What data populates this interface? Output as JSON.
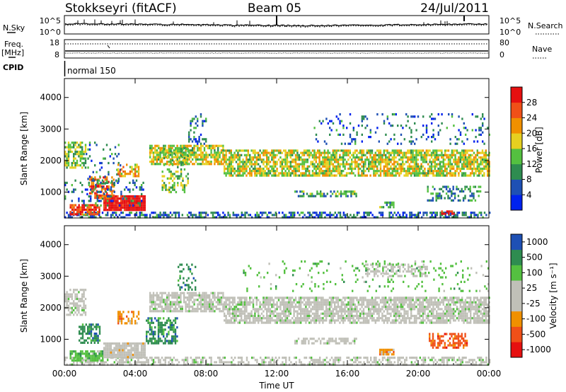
{
  "header": {
    "station": "Stokkseyri (fitACF)",
    "beam": "Beam 05",
    "date": "24/Jul/2011"
  },
  "panels": {
    "noise": {
      "label_left": "N.Sky",
      "label_right": "N.Search",
      "tick_top": "10^5",
      "tick_bottom": "10^0"
    },
    "freq": {
      "label_left_top": "Freq.",
      "label_left_bottom": "[MHz]",
      "tick_top_left": "18",
      "tick_bottom_left": "8",
      "label_right": "Nave",
      "tick_top_right": "80",
      "tick_bottom_right": "0"
    },
    "cpid": {
      "label": "CPID",
      "mode": "normal 150"
    }
  },
  "colors": {
    "power": [
      "#0022ee",
      "#1e50b4",
      "#2e8c50",
      "#54c040",
      "#e6d020",
      "#f09000",
      "#f05018",
      "#e61010"
    ],
    "velocity": [
      "#e61010",
      "#f05018",
      "#f09000",
      "#c0c0b8",
      "#c0c0b8",
      "#54c040",
      "#2e8c50",
      "#1e50b4"
    ],
    "power_colorbar": [
      "#0022ee",
      "#1e50b4",
      "#2e8c50",
      "#54c040",
      "#e6d020",
      "#f09000",
      "#f05018",
      "#e61010"
    ],
    "velocity_colorbar": [
      "#e61010",
      "#f05018",
      "#f09000",
      "#c0c0b8",
      "#c0c0b8",
      "#54c040",
      "#2e8c50",
      "#1e50b4"
    ]
  },
  "chart_data": [
    {
      "type": "heatmap",
      "name": "power",
      "ylabel": "Slant Range [km]",
      "ylim": [
        180,
        4600
      ],
      "yticks": [
        "1000",
        "2000",
        "3000",
        "4000"
      ],
      "colorbar_label": "Power [dB]",
      "colorbar_ticks": [
        "4",
        "8",
        "12",
        "16",
        "20",
        "24",
        "28"
      ],
      "colorbar_range": [
        0,
        32
      ],
      "regions": [
        {
          "t0": 0.0,
          "t1": 24.0,
          "r0": 220,
          "r1": 380,
          "v": 5,
          "d": 0.55
        },
        {
          "t0": 0.3,
          "t1": 2.0,
          "r0": 300,
          "r1": 620,
          "v": 25,
          "d": 0.8
        },
        {
          "t0": 2.2,
          "t1": 4.6,
          "r0": 450,
          "r1": 900,
          "v": 30,
          "d": 0.95
        },
        {
          "t0": 1.4,
          "t1": 2.8,
          "r0": 850,
          "r1": 1500,
          "v": 24,
          "d": 0.55
        },
        {
          "t0": 0.0,
          "t1": 4.5,
          "r0": 600,
          "r1": 1400,
          "v": 6,
          "d": 0.2
        },
        {
          "t0": 0.0,
          "t1": 1.2,
          "r0": 1800,
          "r1": 2600,
          "v": 12,
          "d": 0.65
        },
        {
          "t0": 1.2,
          "t1": 3.2,
          "r0": 1300,
          "r1": 2600,
          "v": 6,
          "d": 0.15
        },
        {
          "t0": 3.0,
          "t1": 4.2,
          "r0": 1500,
          "r1": 1900,
          "v": 18,
          "d": 0.55
        },
        {
          "t0": 4.8,
          "t1": 9.0,
          "r0": 1900,
          "r1": 2500,
          "v": 15,
          "d": 0.75
        },
        {
          "t0": 5.5,
          "t1": 7.0,
          "r0": 1000,
          "r1": 2400,
          "v": 12,
          "d": 0.35
        },
        {
          "t0": 7.0,
          "t1": 8.0,
          "r0": 2500,
          "r1": 3500,
          "v": 6,
          "d": 0.25
        },
        {
          "t0": 9.0,
          "t1": 24.0,
          "r0": 1550,
          "r1": 2350,
          "v": 15,
          "d": 0.72
        },
        {
          "t0": 13.0,
          "t1": 16.5,
          "r0": 850,
          "r1": 1050,
          "v": 9,
          "d": 0.55
        },
        {
          "t0": 17.8,
          "t1": 18.6,
          "r0": 500,
          "r1": 700,
          "v": 10,
          "d": 0.65
        },
        {
          "t0": 20.5,
          "t1": 23.5,
          "r0": 700,
          "r1": 1200,
          "v": 8,
          "d": 0.45
        },
        {
          "t0": 21.3,
          "t1": 22.2,
          "r0": 280,
          "r1": 420,
          "v": 28,
          "d": 0.5
        },
        {
          "t0": 14.0,
          "t1": 24.0,
          "r0": 2500,
          "r1": 3500,
          "v": 5,
          "d": 0.12
        }
      ]
    },
    {
      "type": "heatmap",
      "name": "velocity",
      "ylabel": "Slant Range [km]",
      "xlabel": "Time UT",
      "ylim": [
        180,
        4600
      ],
      "yticks": [
        "1000",
        "2000",
        "3000",
        "4000"
      ],
      "xticks": [
        "00:00",
        "04:00",
        "08:00",
        "12:00",
        "16:00",
        "20:00",
        "00:00"
      ],
      "xlim": [
        0,
        24
      ],
      "colorbar_label": "Velocity [m s⁻¹]",
      "colorbar_ticks": [
        "1000",
        "500",
        "100",
        "25",
        "-25",
        "-100",
        "-500",
        "-1000"
      ],
      "regions": [
        {
          "t0": 0.0,
          "t1": 24.0,
          "r0": 220,
          "r1": 450,
          "v": 4,
          "d": 0.5
        },
        {
          "t0": 0.3,
          "t1": 2.2,
          "r0": 300,
          "r1": 650,
          "v": 5,
          "d": 0.8
        },
        {
          "t0": 2.2,
          "t1": 4.6,
          "r0": 450,
          "r1": 900,
          "v": 3,
          "d": 0.9
        },
        {
          "t0": 0.0,
          "t1": 1.2,
          "r0": 1800,
          "r1": 2600,
          "v": 4,
          "d": 0.6
        },
        {
          "t0": 0.8,
          "t1": 2.0,
          "r0": 900,
          "r1": 1500,
          "v": 6,
          "d": 0.6
        },
        {
          "t0": 3.0,
          "t1": 4.2,
          "r0": 1500,
          "r1": 1900,
          "v": 2,
          "d": 0.5
        },
        {
          "t0": 4.6,
          "t1": 6.4,
          "r0": 900,
          "r1": 1700,
          "v": 6,
          "d": 0.6
        },
        {
          "t0": 4.8,
          "t1": 9.0,
          "r0": 1900,
          "r1": 2500,
          "v": 4,
          "d": 0.75
        },
        {
          "t0": 6.4,
          "t1": 7.4,
          "r0": 2600,
          "r1": 3400,
          "v": 6,
          "d": 0.3
        },
        {
          "t0": 9.0,
          "t1": 24.0,
          "r0": 1550,
          "r1": 2350,
          "v": 4,
          "d": 0.75
        },
        {
          "t0": 13.0,
          "t1": 16.5,
          "r0": 850,
          "r1": 1050,
          "v": 4,
          "d": 0.6
        },
        {
          "t0": 17.8,
          "t1": 18.6,
          "r0": 500,
          "r1": 700,
          "v": 2,
          "d": 0.8
        },
        {
          "t0": 20.6,
          "t1": 22.8,
          "r0": 700,
          "r1": 1200,
          "v": 1,
          "d": 0.55
        },
        {
          "t0": 17.0,
          "t1": 20.5,
          "r0": 3000,
          "r1": 3400,
          "v": 4,
          "d": 0.45
        },
        {
          "t0": 10.0,
          "t1": 24.0,
          "r0": 2500,
          "r1": 3500,
          "v": 5,
          "d": 0.08
        }
      ]
    }
  ]
}
